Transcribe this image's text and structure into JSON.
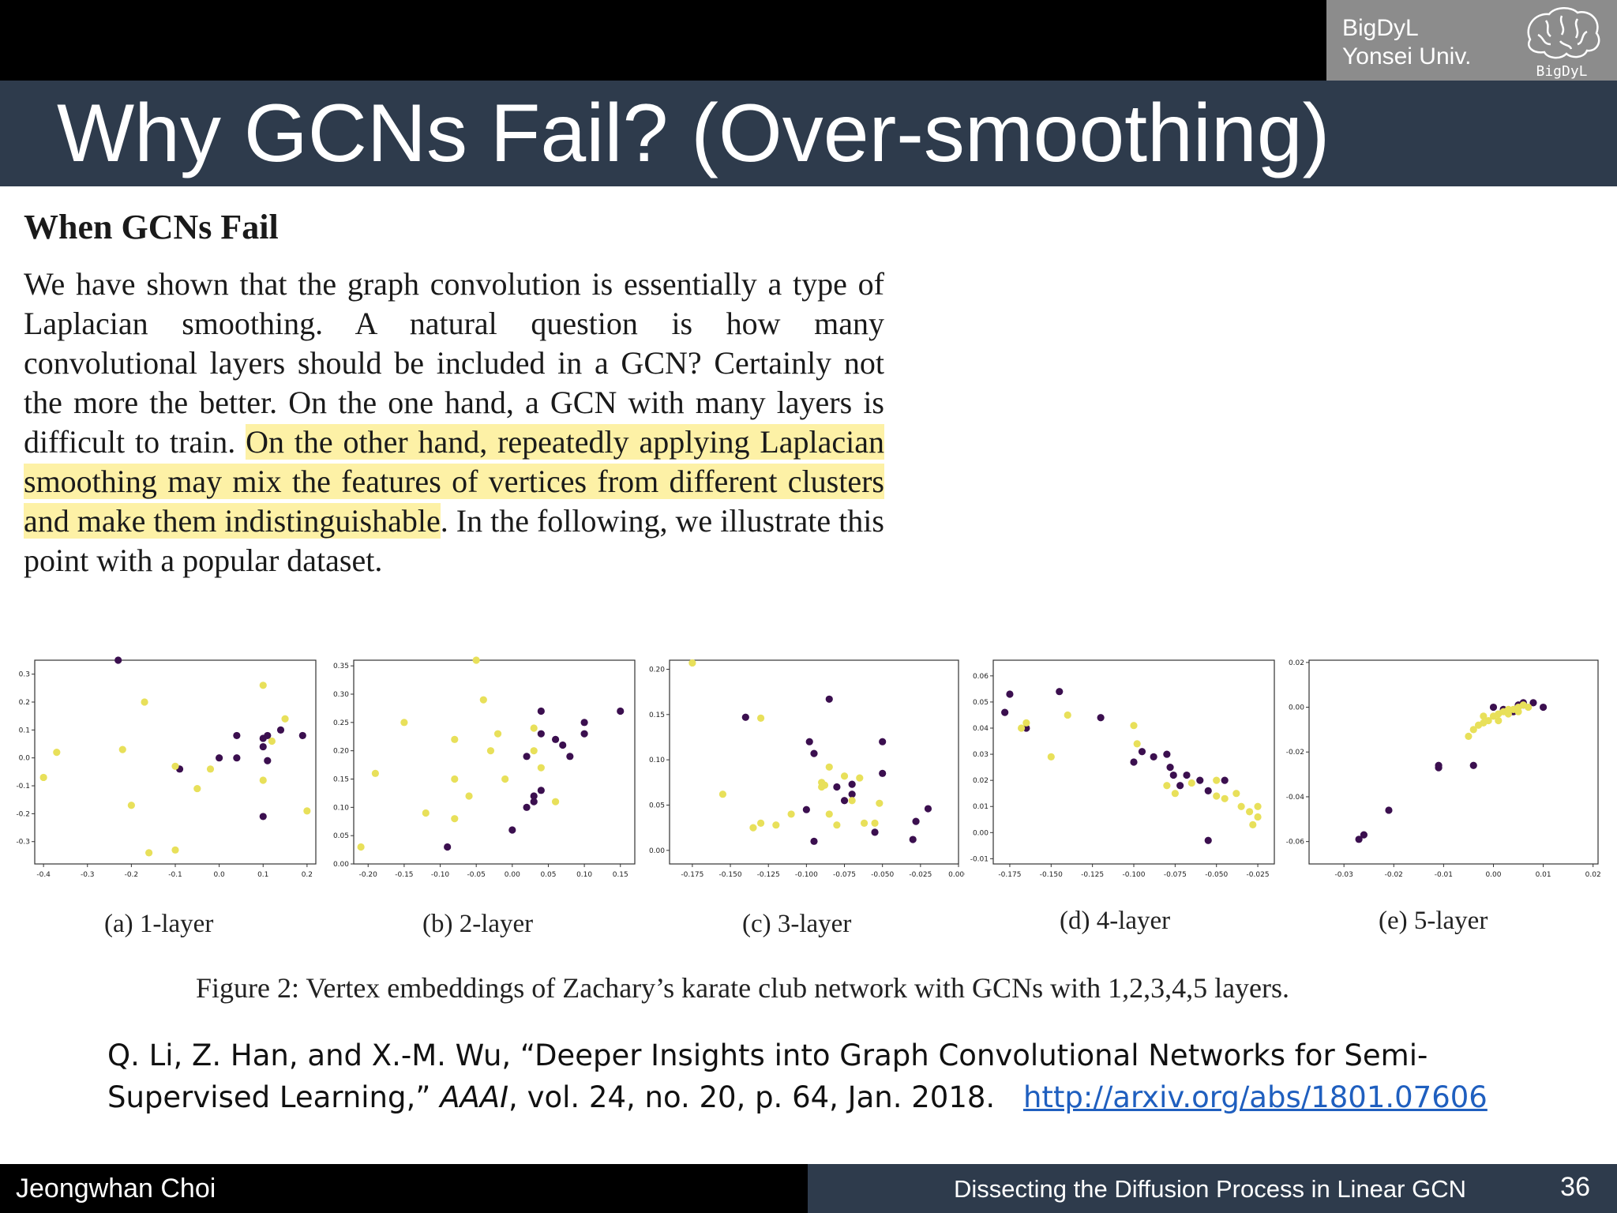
{
  "header": {
    "lab_line1": "BigDyL",
    "lab_line2": "Yonsei Univ.",
    "logo_text": "BigDyL",
    "title": "Why GCNs Fail? (Over-smoothing)"
  },
  "excerpt": {
    "heading": "When GCNs Fail",
    "text_before": "We have shown that the graph convolution is essentially a type of Laplacian smoothing. A natural question is how many convolutional layers should be included in a GCN? Certainly not the more the better. On the one hand, a GCN with many layers is difficult to train.",
    "text_highlight": "On the other hand, repeatedly applying Laplacian smoothing may mix the features of vertices from different clusters and make them indistinguishable",
    "text_after": ". In the following, we illustrate this point with a popular dataset.",
    "highlight_color": "#fdf1a6"
  },
  "figure_caption": "Figure 2: Vertex embeddings of Zachary’s karate club network with GCNs with 1,2,3,4,5 layers.",
  "citation": {
    "text": "Q. Li, Z. Han, and X.-M. Wu, “Deeper Insights into Graph Convolutional Networks for Semi-Supervised Learning,”",
    "venue": "AAAI",
    "details": ", vol. 24, no. 20, p. 64, Jan. 2018.",
    "link": "http://arxiv.org/abs/1801.07606"
  },
  "footer": {
    "author": "Jeongwhan Choi",
    "talk_title": "Dissecting the Diffusion Process in Linear GCN",
    "page": "36"
  },
  "colors": {
    "class_a": "#3b0f4f",
    "class_b": "#e8e05a",
    "title_bar": "#2e3b4c"
  },
  "chart_data": [
    {
      "type": "scatter",
      "caption": "(a) 1-layer",
      "xlim": [
        -0.42,
        0.22
      ],
      "ylim": [
        -0.38,
        0.35
      ],
      "xticks": [
        "-0.4",
        "-0.3",
        "-0.2",
        "-0.1",
        "0.0",
        "0.1",
        "0.2"
      ],
      "yticks": [
        "0.3",
        "0.2",
        "0.1",
        "0.0",
        "-0.1",
        "-0.2",
        "-0.3"
      ],
      "xtick_values": [
        -0.4,
        -0.3,
        -0.2,
        -0.1,
        0.0,
        0.1,
        0.2
      ],
      "ytick_values": [
        0.3,
        0.2,
        0.1,
        0.0,
        -0.1,
        -0.2,
        -0.3
      ],
      "series": [
        {
          "points": [
            [
              -0.23,
              0.35
            ],
            [
              -0.09,
              -0.04
            ],
            [
              0.0,
              0.0
            ],
            [
              0.04,
              0.08
            ],
            [
              0.04,
              0.0
            ],
            [
              0.1,
              0.07
            ],
            [
              0.11,
              0.08
            ],
            [
              0.14,
              0.1
            ],
            [
              0.19,
              0.08
            ],
            [
              0.11,
              -0.01
            ],
            [
              0.1,
              -0.21
            ],
            [
              0.1,
              0.04
            ]
          ]
        },
        {
          "points": [
            [
              -0.37,
              0.02
            ],
            [
              -0.4,
              -0.07
            ],
            [
              -0.22,
              0.03
            ],
            [
              -0.17,
              0.2
            ],
            [
              -0.2,
              -0.17
            ],
            [
              -0.16,
              -0.34
            ],
            [
              -0.1,
              -0.03
            ],
            [
              -0.05,
              -0.11
            ],
            [
              -0.02,
              -0.04
            ],
            [
              -0.1,
              -0.33
            ],
            [
              0.1,
              0.26
            ],
            [
              0.15,
              0.14
            ],
            [
              0.2,
              -0.19
            ],
            [
              0.1,
              -0.08
            ],
            [
              0.12,
              0.06
            ]
          ]
        }
      ]
    },
    {
      "type": "scatter",
      "caption": "(b) 2-layer",
      "xlim": [
        -0.22,
        0.17
      ],
      "ylim": [
        0.0,
        0.36
      ],
      "xticks": [
        "-0.20",
        "-0.15",
        "-0.10",
        "-0.05",
        "0.00",
        "0.05",
        "0.10",
        "0.15"
      ],
      "yticks": [
        "0.35",
        "0.30",
        "0.25",
        "0.20",
        "0.15",
        "0.10",
        "0.05",
        "0.00"
      ],
      "xtick_values": [
        -0.2,
        -0.15,
        -0.1,
        -0.05,
        0.0,
        0.05,
        0.1,
        0.15
      ],
      "ytick_values": [
        0.35,
        0.3,
        0.25,
        0.2,
        0.15,
        0.1,
        0.05,
        0.0
      ],
      "series": [
        {
          "points": [
            [
              -0.09,
              0.03
            ],
            [
              0.0,
              0.06
            ],
            [
              0.02,
              0.1
            ],
            [
              0.03,
              0.12
            ],
            [
              0.04,
              0.13
            ],
            [
              0.03,
              0.11
            ],
            [
              0.02,
              0.19
            ],
            [
              0.04,
              0.23
            ],
            [
              0.06,
              0.22
            ],
            [
              0.08,
              0.19
            ],
            [
              0.1,
              0.23
            ],
            [
              0.1,
              0.25
            ],
            [
              0.15,
              0.27
            ],
            [
              0.07,
              0.21
            ],
            [
              0.04,
              0.27
            ]
          ]
        },
        {
          "points": [
            [
              -0.21,
              0.03
            ],
            [
              -0.19,
              0.16
            ],
            [
              -0.15,
              0.25
            ],
            [
              -0.12,
              0.09
            ],
            [
              -0.08,
              0.22
            ],
            [
              -0.08,
              0.15
            ],
            [
              -0.06,
              0.12
            ],
            [
              -0.05,
              0.36
            ],
            [
              -0.04,
              0.29
            ],
            [
              -0.03,
              0.2
            ],
            [
              -0.02,
              0.23
            ],
            [
              -0.01,
              0.15
            ],
            [
              0.03,
              0.24
            ],
            [
              0.03,
              0.2
            ],
            [
              0.04,
              0.17
            ],
            [
              0.06,
              0.11
            ],
            [
              -0.08,
              0.08
            ]
          ]
        }
      ]
    },
    {
      "type": "scatter",
      "caption": "(c) 3-layer",
      "xlim": [
        -0.19,
        0.0
      ],
      "ylim": [
        -0.015,
        0.21
      ],
      "xticks": [
        "-0.175",
        "-0.150",
        "-0.125",
        "-0.100",
        "-0.075",
        "-0.050",
        "-0.025",
        "0.000"
      ],
      "yticks": [
        "0.20",
        "0.15",
        "0.10",
        "0.05",
        "0.00"
      ],
      "xtick_values": [
        -0.175,
        -0.15,
        -0.125,
        -0.1,
        -0.075,
        -0.05,
        -0.025,
        0.0
      ],
      "ytick_values": [
        0.2,
        0.15,
        0.1,
        0.05,
        0.0
      ],
      "series": [
        {
          "points": [
            [
              -0.14,
              0.147
            ],
            [
              -0.085,
              0.167
            ],
            [
              -0.098,
              0.12
            ],
            [
              -0.095,
              0.107
            ],
            [
              -0.08,
              0.07
            ],
            [
              -0.07,
              0.073
            ],
            [
              -0.07,
              0.062
            ],
            [
              -0.05,
              0.085
            ],
            [
              -0.05,
              0.12
            ],
            [
              -0.1,
              0.045
            ],
            [
              -0.055,
              0.02
            ],
            [
              -0.095,
              0.01
            ],
            [
              -0.028,
              0.032
            ],
            [
              -0.02,
              0.046
            ],
            [
              -0.03,
              0.012
            ],
            [
              -0.075,
              0.055
            ]
          ]
        },
        {
          "points": [
            [
              -0.175,
              0.207
            ],
            [
              -0.155,
              0.062
            ],
            [
              -0.13,
              0.146
            ],
            [
              -0.135,
              0.025
            ],
            [
              -0.13,
              0.03
            ],
            [
              -0.12,
              0.028
            ],
            [
              -0.11,
              0.04
            ],
            [
              -0.09,
              0.075
            ],
            [
              -0.088,
              0.072
            ],
            [
              -0.085,
              0.04
            ],
            [
              -0.075,
              0.082
            ],
            [
              -0.07,
              0.055
            ],
            [
              -0.065,
              0.08
            ],
            [
              -0.062,
              0.03
            ],
            [
              -0.055,
              0.03
            ],
            [
              -0.052,
              0.052
            ],
            [
              -0.08,
              0.028
            ],
            [
              -0.085,
              0.092
            ],
            [
              -0.09,
              0.07
            ]
          ]
        }
      ]
    },
    {
      "type": "scatter",
      "caption": "(d) 4-layer",
      "xlim": [
        -0.185,
        -0.015
      ],
      "ylim": [
        -0.012,
        0.066
      ],
      "xticks": [
        "-0.175",
        "-0.150",
        "-0.125",
        "-0.100",
        "-0.075",
        "-0.050",
        "-0.025"
      ],
      "yticks": [
        "0.06",
        "0.05",
        "0.04",
        "0.03",
        "0.02",
        "0.01",
        "0.00",
        "-0.01"
      ],
      "xtick_values": [
        -0.175,
        -0.15,
        -0.125,
        -0.1,
        -0.075,
        -0.05,
        -0.025
      ],
      "ytick_values": [
        0.06,
        0.05,
        0.04,
        0.03,
        0.02,
        0.01,
        0.0,
        -0.01
      ],
      "series": [
        {
          "points": [
            [
              -0.178,
              0.046
            ],
            [
              -0.175,
              0.053
            ],
            [
              -0.165,
              0.04
            ],
            [
              -0.145,
              0.054
            ],
            [
              -0.12,
              0.044
            ],
            [
              -0.1,
              0.027
            ],
            [
              -0.095,
              0.031
            ],
            [
              -0.088,
              0.029
            ],
            [
              -0.08,
              0.03
            ],
            [
              -0.078,
              0.025
            ],
            [
              -0.076,
              0.022
            ],
            [
              -0.072,
              0.018
            ],
            [
              -0.068,
              0.022
            ],
            [
              -0.06,
              0.02
            ],
            [
              -0.055,
              0.016
            ],
            [
              -0.045,
              0.02
            ],
            [
              -0.055,
              -0.003
            ]
          ]
        },
        {
          "points": [
            [
              -0.168,
              0.04
            ],
            [
              -0.165,
              0.042
            ],
            [
              -0.15,
              0.029
            ],
            [
              -0.14,
              0.045
            ],
            [
              -0.1,
              0.041
            ],
            [
              -0.098,
              0.034
            ],
            [
              -0.08,
              0.018
            ],
            [
              -0.075,
              0.015
            ],
            [
              -0.065,
              0.019
            ],
            [
              -0.05,
              0.014
            ],
            [
              -0.045,
              0.013
            ],
            [
              -0.038,
              0.015
            ],
            [
              -0.035,
              0.01
            ],
            [
              -0.03,
              0.008
            ],
            [
              -0.025,
              0.01
            ],
            [
              -0.025,
              0.006
            ],
            [
              -0.028,
              0.003
            ],
            [
              -0.05,
              0.02
            ]
          ]
        }
      ]
    },
    {
      "type": "scatter",
      "caption": "(e) 5-layer",
      "xlim": [
        -0.037,
        0.021
      ],
      "ylim": [
        -0.07,
        0.021
      ],
      "xticks": [
        "-0.03",
        "-0.02",
        "-0.01",
        "0.00",
        "0.01",
        "0.02"
      ],
      "yticks": [
        "0.02",
        "0.00",
        "-0.02",
        "-0.04",
        "-0.06"
      ],
      "xtick_values": [
        -0.03,
        -0.02,
        -0.01,
        0.0,
        0.01,
        0.02
      ],
      "ytick_values": [
        0.02,
        0.0,
        -0.02,
        -0.04,
        -0.06
      ],
      "series": [
        {
          "points": [
            [
              -0.027,
              -0.059
            ],
            [
              -0.026,
              -0.057
            ],
            [
              -0.021,
              -0.046
            ],
            [
              -0.011,
              -0.027
            ],
            [
              -0.011,
              -0.026
            ],
            [
              -0.004,
              -0.026
            ],
            [
              0.0,
              0.0
            ],
            [
              0.002,
              -0.001
            ],
            [
              0.004,
              -0.002
            ],
            [
              0.006,
              0.001
            ],
            [
              0.006,
              0.002
            ],
            [
              0.008,
              0.002
            ],
            [
              0.01,
              0.0
            ],
            [
              0.005,
              0.001
            ]
          ]
        },
        {
          "points": [
            [
              -0.005,
              -0.013
            ],
            [
              -0.004,
              -0.01
            ],
            [
              -0.003,
              -0.008
            ],
            [
              -0.002,
              -0.007
            ],
            [
              -0.001,
              -0.006
            ],
            [
              0.0,
              -0.004
            ],
            [
              0.001,
              -0.003
            ],
            [
              0.002,
              -0.002
            ],
            [
              0.003,
              -0.001
            ],
            [
              0.004,
              -0.001
            ],
            [
              0.005,
              0.0
            ],
            [
              0.006,
              0.001
            ],
            [
              0.001,
              -0.006
            ],
            [
              -0.002,
              -0.004
            ],
            [
              0.003,
              -0.003
            ],
            [
              0.005,
              -0.002
            ],
            [
              0.007,
              0.0
            ]
          ]
        }
      ]
    }
  ]
}
